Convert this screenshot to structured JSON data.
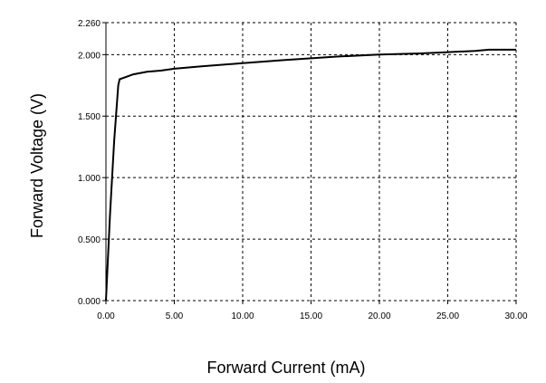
{
  "chart_data": {
    "type": "line",
    "title": "",
    "xlabel": "Forward Current (mA)",
    "ylabel": "Forward Voltage (V)",
    "xlim": [
      0,
      30
    ],
    "ylim": [
      0,
      2.26
    ],
    "x_ticks": [
      0,
      5,
      10,
      15,
      20,
      25,
      30
    ],
    "x_tick_labels": [
      "0.00",
      "5.00",
      "10.00",
      "15.00",
      "20.00",
      "25.00",
      "30.00"
    ],
    "y_ticks": [
      0,
      0.5,
      1.0,
      1.5,
      2.0,
      2.26
    ],
    "y_tick_labels": [
      "0.000",
      "0.500",
      "1.000",
      "1.500",
      "2.000",
      "2.260"
    ],
    "grid": true,
    "line_color": "#000000",
    "series": [
      {
        "x": [
          0,
          0.3,
          0.6,
          0.9,
          1.0,
          1.5,
          2,
          3,
          4,
          5,
          7,
          10,
          13,
          15,
          17,
          20,
          23,
          25,
          27,
          28,
          30
        ],
        "y": [
          0,
          0.7,
          1.3,
          1.75,
          1.8,
          1.82,
          1.84,
          1.86,
          1.87,
          1.885,
          1.905,
          1.93,
          1.955,
          1.97,
          1.985,
          2.0,
          2.01,
          2.02,
          2.03,
          2.04,
          2.04
        ]
      }
    ]
  }
}
